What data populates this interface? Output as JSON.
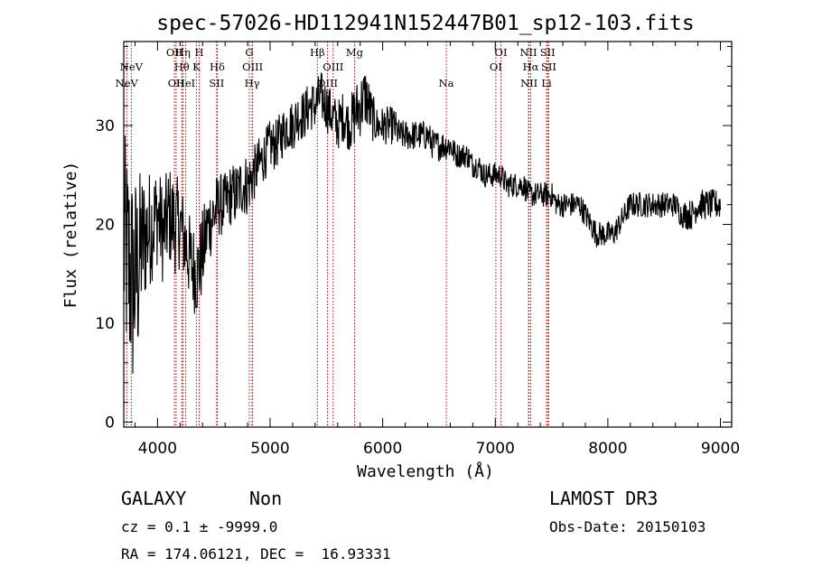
{
  "chart_data": {
    "type": "line",
    "title": "spec-57026-HD112941N152447B01_sp12-103.fits",
    "xlabel": "Wavelength (Å)",
    "ylabel": "Flux (relative)",
    "xlim": [
      3700,
      9100
    ],
    "ylim": [
      -0.5,
      38.5
    ],
    "xticks": [
      "4000",
      "5000",
      "6000",
      "7000",
      "8000",
      "9000"
    ],
    "xtick_values": [
      4000,
      5000,
      6000,
      7000,
      8000,
      9000
    ],
    "yticks": [
      "0",
      "10",
      "20",
      "30"
    ],
    "ytick_values": [
      0,
      10,
      20,
      30
    ],
    "grid": false,
    "line_color": "#000000",
    "marker_color": "#cc0000",
    "lines": [
      {
        "label": "NeV",
        "x": 3726,
        "row": 3
      },
      {
        "label": "NeV",
        "x": 3767,
        "row": 2
      },
      {
        "label": "OII",
        "x": 4150,
        "row": 1
      },
      {
        "label": "OII",
        "x": 4165,
        "row": 3
      },
      {
        "label": "Hη",
        "x": 4225,
        "row": 1
      },
      {
        "label": "Hθ",
        "x": 4215,
        "row": 2
      },
      {
        "label": "HeI",
        "x": 4250,
        "row": 3
      },
      {
        "label": "H",
        "x": 4370,
        "row": 1
      },
      {
        "label": "K",
        "x": 4345,
        "row": 2
      },
      {
        "label": "Hδ",
        "x": 4530,
        "row": 2
      },
      {
        "label": "SII",
        "x": 4525,
        "row": 3
      },
      {
        "label": "G",
        "x": 4815,
        "row": 1
      },
      {
        "label": "OIII",
        "x": 4845,
        "row": 2
      },
      {
        "label": "Hγ",
        "x": 4840,
        "row": 3
      },
      {
        "label": "Hβ",
        "x": 5420,
        "row": 1
      },
      {
        "label": "OIII",
        "x": 5560,
        "row": 2
      },
      {
        "label": "OIII",
        "x": 5510,
        "row": 3
      },
      {
        "label": "Mg",
        "x": 5750,
        "row": 1
      },
      {
        "label": "Na",
        "x": 6565,
        "row": 3
      },
      {
        "label": "OI",
        "x": 7050,
        "row": 1
      },
      {
        "label": "OI",
        "x": 7005,
        "row": 2
      },
      {
        "label": "NII",
        "x": 7295,
        "row": 1
      },
      {
        "label": "Hα",
        "x": 7315,
        "row": 2
      },
      {
        "label": "NII",
        "x": 7300,
        "row": 3
      },
      {
        "label": "SII",
        "x": 7465,
        "row": 1
      },
      {
        "label": "SII",
        "x": 7475,
        "row": 2
      },
      {
        "label": "Li",
        "x": 7455,
        "row": 3
      }
    ],
    "spectrum": {
      "x": [
        3700,
        3740,
        3780,
        3820,
        3860,
        3900,
        3950,
        4000,
        4050,
        4100,
        4150,
        4200,
        4250,
        4300,
        4350,
        4400,
        4450,
        4500,
        4550,
        4600,
        4650,
        4700,
        4750,
        4800,
        4850,
        4900,
        4950,
        5000,
        5050,
        5100,
        5150,
        5200,
        5250,
        5300,
        5350,
        5400,
        5450,
        5500,
        5550,
        5600,
        5650,
        5700,
        5750,
        5800,
        5850,
        5900,
        5950,
        6000,
        6050,
        6100,
        6150,
        6200,
        6250,
        6300,
        6350,
        6400,
        6450,
        6500,
        6550,
        6600,
        6650,
        6700,
        6750,
        6800,
        6850,
        6900,
        6950,
        7000,
        7050,
        7100,
        7150,
        7200,
        7250,
        7300,
        7350,
        7400,
        7450,
        7500,
        7550,
        7600,
        7650,
        7700,
        7750,
        7800,
        7850,
        7900,
        7950,
        8000,
        8050,
        8100,
        8150,
        8200,
        8250,
        8300,
        8350,
        8400,
        8450,
        8500,
        8550,
        8600,
        8650,
        8700,
        8750,
        8800,
        8850,
        8900,
        8950,
        9000
      ],
      "y": [
        18,
        16,
        14,
        15,
        18,
        19,
        20,
        21,
        19,
        21,
        20,
        20,
        18,
        16,
        15,
        17,
        20,
        21,
        22,
        22,
        23,
        23,
        24,
        24,
        25,
        26,
        27,
        28,
        28,
        29,
        30,
        30,
        31,
        31,
        32,
        32,
        33,
        32,
        31,
        30,
        31,
        30,
        31,
        32,
        33,
        31,
        30,
        30,
        30,
        30,
        29,
        29,
        29,
        29,
        29,
        29,
        28,
        28,
        28,
        28,
        27,
        27,
        27,
        26,
        26,
        25,
        25,
        25,
        25,
        24,
        24,
        24,
        24,
        23,
        23,
        23,
        23,
        23,
        22,
        22,
        22,
        22,
        22,
        21,
        20,
        19,
        19,
        19,
        19,
        20,
        21,
        22,
        22,
        22,
        22,
        22,
        22,
        22,
        22,
        22,
        21,
        21,
        21,
        22,
        22,
        22,
        22,
        22
      ],
      "noise": [
        9,
        9,
        9,
        8,
        6,
        5,
        4.5,
        4,
        4,
        4,
        4,
        3.5,
        3.5,
        3.5,
        3.5,
        3.5,
        3,
        3,
        2.5,
        2.5,
        2.5,
        2.5,
        2.5,
        2.5,
        2.2,
        2.2,
        2,
        2,
        2,
        2,
        2,
        2,
        2,
        2,
        2,
        2,
        2,
        2,
        2,
        2,
        2,
        2,
        2.5,
        2.5,
        2.5,
        2,
        1.5,
        1.5,
        1.5,
        1.5,
        1.2,
        1.2,
        1.2,
        1.2,
        1.2,
        1.2,
        1.2,
        1.2,
        1.2,
        1.2,
        1,
        1,
        1,
        1,
        1,
        1,
        1,
        1,
        1,
        1,
        1,
        1,
        1,
        1,
        1,
        1,
        1,
        1,
        1,
        1,
        1,
        1,
        1,
        1,
        1,
        1,
        1,
        1,
        1,
        1,
        1,
        1,
        1,
        1,
        1,
        1,
        1,
        1,
        1,
        1,
        1,
        1.2,
        1.2,
        1.2,
        1.2,
        1.2,
        1.2,
        1.2
      ]
    }
  },
  "info": {
    "class": "GALAXY",
    "subclass": "Non",
    "survey": "LAMOST DR3",
    "cz": "cz = 0.1 ± -9999.0",
    "obsdate": "Obs-Date: 20150103",
    "radec": "RA = 174.06121, DEC =  16.93331"
  }
}
